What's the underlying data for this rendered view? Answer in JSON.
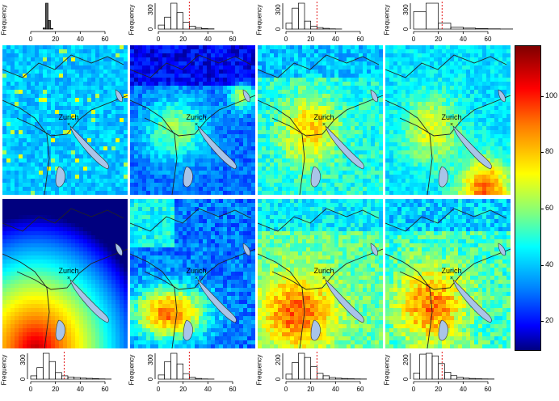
{
  "city_label": "Zurich",
  "freq_label": "Frequency",
  "colorbar": {
    "ticks": [
      100,
      80,
      60,
      40,
      20
    ]
  },
  "hist_xticks": [
    "0",
    "20",
    "40",
    "60"
  ],
  "hist_top": [
    {
      "yticks": []
    },
    {
      "yticks": [
        "300",
        "0"
      ]
    },
    {
      "yticks": [
        "300",
        "0"
      ]
    },
    {
      "yticks": [
        "300",
        "0"
      ]
    }
  ],
  "hist_bottom": [
    {
      "yticks": [
        "300",
        "0"
      ]
    },
    {
      "yticks": [
        "300",
        "0"
      ]
    },
    {
      "yticks": [
        "200",
        "0"
      ]
    },
    {
      "yticks": [
        "200",
        "0"
      ]
    }
  ],
  "chart_data": [
    {
      "type": "bar",
      "title": "",
      "xlabel": "",
      "ylabel": "Frequency",
      "xlim": [
        0,
        70
      ],
      "bins": [
        10,
        12,
        14,
        16
      ],
      "values": [
        40,
        900,
        300,
        20
      ],
      "threshold": null
    },
    {
      "type": "bar",
      "title": "",
      "xlabel": "",
      "ylabel": "Frequency",
      "xlim": [
        0,
        70
      ],
      "bins": [
        0,
        5,
        10,
        15,
        20,
        25,
        30,
        35,
        40
      ],
      "values": [
        80,
        240,
        520,
        330,
        140,
        60,
        30,
        10,
        5
      ],
      "threshold": 25
    },
    {
      "type": "bar",
      "title": "",
      "xlabel": "",
      "ylabel": "Frequency",
      "xlim": [
        0,
        70
      ],
      "bins": [
        0,
        5,
        10,
        15,
        20,
        25,
        30,
        35,
        40
      ],
      "values": [
        120,
        420,
        520,
        160,
        60,
        30,
        15,
        5,
        2
      ],
      "threshold": 25
    },
    {
      "type": "bar",
      "title": "",
      "xlabel": "",
      "ylabel": "Frequency",
      "xlim": [
        0,
        70
      ],
      "bins": [
        0,
        10,
        20,
        30,
        40,
        50,
        60,
        70
      ],
      "values": [
        350,
        520,
        120,
        40,
        20,
        10,
        5,
        2
      ],
      "threshold": 23
    },
    {
      "type": "bar",
      "title": "",
      "xlabel": "",
      "ylabel": "Frequency",
      "xlim": [
        0,
        70
      ],
      "bins": [
        0,
        5,
        10,
        15,
        20,
        25,
        30,
        35,
        40,
        45,
        50,
        55,
        60
      ],
      "values": [
        60,
        210,
        470,
        320,
        120,
        60,
        40,
        30,
        20,
        15,
        10,
        5,
        2
      ],
      "threshold": 27
    },
    {
      "type": "bar",
      "title": "",
      "xlabel": "",
      "ylabel": "Frequency",
      "xlim": [
        0,
        70
      ],
      "bins": [
        0,
        5,
        10,
        15,
        20,
        25,
        30,
        35,
        40
      ],
      "values": [
        90,
        380,
        560,
        330,
        120,
        40,
        15,
        5,
        2
      ],
      "threshold": 25
    },
    {
      "type": "bar",
      "title": "",
      "xlabel": "",
      "ylabel": "Frequency",
      "xlim": [
        0,
        70
      ],
      "bins": [
        0,
        5,
        10,
        15,
        20,
        25,
        30,
        35,
        40,
        45,
        50,
        55,
        60
      ],
      "values": [
        60,
        200,
        310,
        260,
        150,
        70,
        40,
        20,
        12,
        8,
        5,
        3,
        2
      ],
      "threshold": 25
    },
    {
      "type": "bar",
      "title": "",
      "xlabel": "",
      "ylabel": "Frequency",
      "xlim": [
        0,
        70
      ],
      "bins": [
        0,
        5,
        10,
        15,
        20,
        25,
        30,
        35,
        40,
        45,
        50,
        55,
        60
      ],
      "values": [
        70,
        290,
        300,
        270,
        180,
        80,
        40,
        22,
        12,
        8,
        5,
        3,
        2
      ],
      "threshold": 23
    }
  ]
}
